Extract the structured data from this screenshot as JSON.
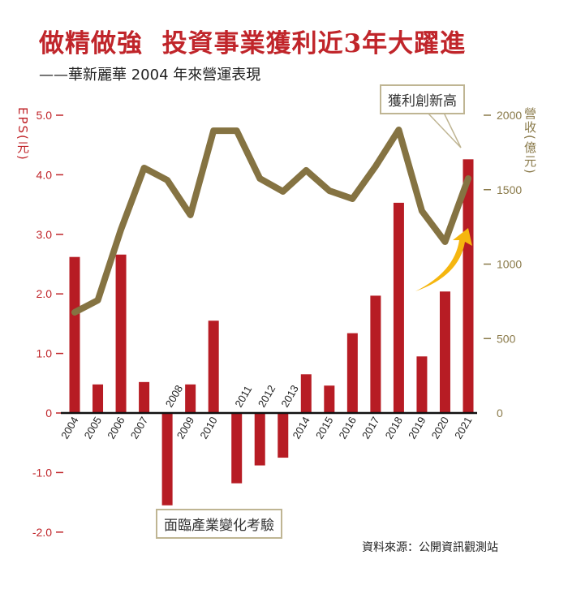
{
  "title": "做精做強  投資事業獲利近3年大躍進",
  "subtitle": "——華新麗華 2004 年來營運表現",
  "source": "資料來源：公開資訊觀測站",
  "annotations": {
    "high": "獲利創新高",
    "challenge": "面臨產業變化考驗"
  },
  "colors": {
    "eps_bar": "#b71c24",
    "revenue_line": "#857342",
    "arrow": "#f5b60f",
    "left_axis": "#c0252a",
    "right_axis": "#8a7a4a"
  },
  "chart_data": {
    "type": "bar+line",
    "title": "做精做強  投資事業獲利近3年大躍進",
    "categories": [
      "2004",
      "2005",
      "2006",
      "2007",
      "2008",
      "2009",
      "2010",
      "2011",
      "2012",
      "2013",
      "2014",
      "2015",
      "2016",
      "2017",
      "2018",
      "2019",
      "2020",
      "2021"
    ],
    "series": [
      {
        "name": "EPS(元)",
        "type": "bar",
        "axis": "left",
        "values": [
          2.62,
          0.48,
          2.66,
          0.52,
          -1.55,
          0.48,
          1.55,
          -1.18,
          -0.88,
          -0.75,
          0.65,
          0.46,
          1.34,
          1.97,
          3.53,
          0.95,
          2.04,
          4.26
        ]
      },
      {
        "name": "營收(億元)",
        "type": "line",
        "axis": "right",
        "values": [
          676,
          757,
          1232,
          1646,
          1564,
          1330,
          1896,
          1896,
          1575,
          1488,
          1630,
          1493,
          1439,
          1657,
          1902,
          1357,
          1150,
          1575
        ]
      }
    ],
    "ylabel_left": "EPS(元)",
    "ylabel_right": "營收(億元)",
    "ylim_left": [
      -2.0,
      5.0
    ],
    "ylim_right": [
      0,
      2000
    ],
    "yticks_left": [
      "5.0",
      "4.0",
      "3.0",
      "2.0",
      "1.0",
      "0",
      "-1.0",
      "-2.0"
    ],
    "yticks_left_values": [
      5,
      4,
      3,
      2,
      1,
      0,
      -1,
      -2
    ],
    "yticks_right": [
      "2000",
      "1500",
      "1000",
      "500",
      "0"
    ],
    "yticks_right_values": [
      2000,
      1500,
      1000,
      500,
      0
    ],
    "grid": false,
    "legend": "none"
  }
}
